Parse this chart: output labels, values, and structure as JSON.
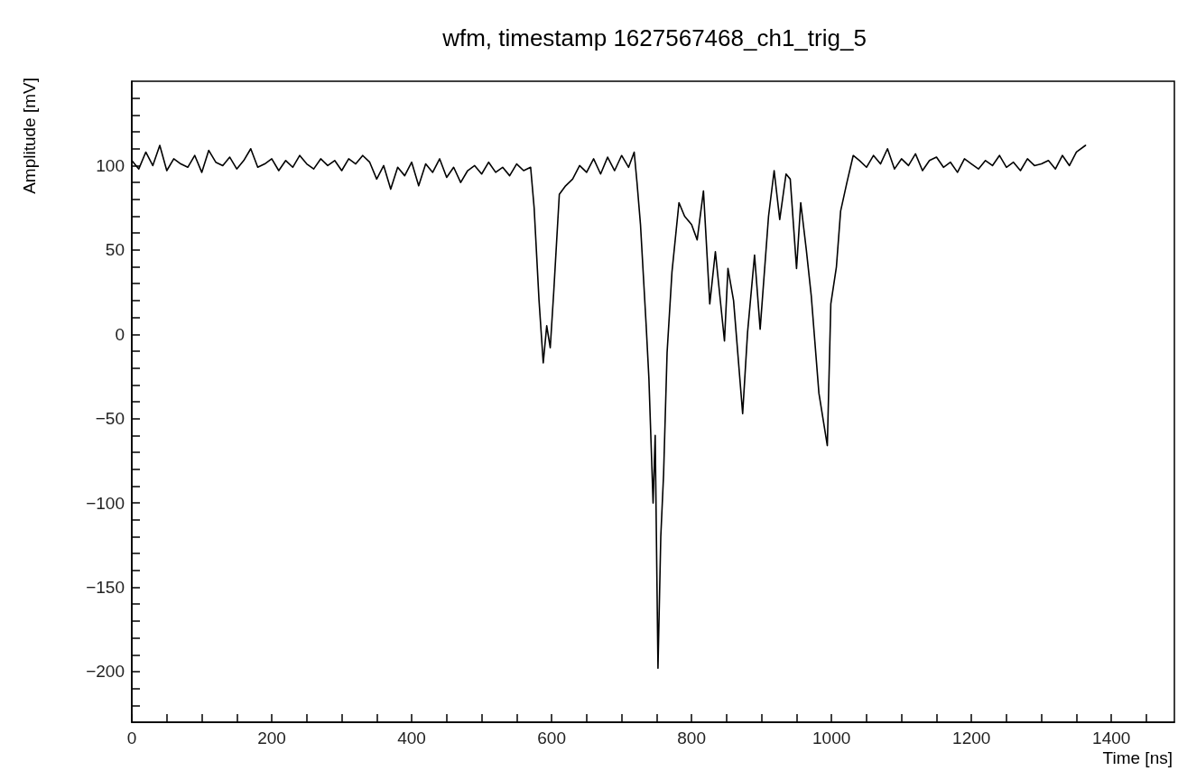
{
  "chart_data": {
    "type": "line",
    "title": "wfm, timestamp 1627567468_ch1_trig_5",
    "xlabel": "Time [ns]",
    "ylabel": "Amplitude [mV]",
    "xlim": [
      0,
      1490
    ],
    "ylim": [
      -230,
      150
    ],
    "xticks": [
      0,
      {
        "value": 50,
        "label": null
      },
      {
        "value": 100,
        "label": null
      },
      {
        "value": 150,
        "label": null
      },
      200,
      {
        "value": 250,
        "label": null
      },
      {
        "value": 300,
        "label": null
      },
      {
        "value": 350,
        "label": null
      },
      400,
      {
        "value": 450,
        "label": null
      },
      {
        "value": 500,
        "label": null
      },
      {
        "value": 550,
        "label": null
      },
      600,
      {
        "value": 650,
        "label": null
      },
      {
        "value": 700,
        "label": null
      },
      {
        "value": 750,
        "label": null
      },
      800,
      {
        "value": 850,
        "label": null
      },
      {
        "value": 900,
        "label": null
      },
      {
        "value": 950,
        "label": null
      },
      1000,
      {
        "value": 1050,
        "label": null
      },
      {
        "value": 1100,
        "label": null
      },
      {
        "value": 1150,
        "label": null
      },
      1200,
      {
        "value": 1250,
        "label": null
      },
      {
        "value": 1300,
        "label": null
      },
      {
        "value": 1350,
        "label": null
      },
      1400,
      {
        "value": 1450,
        "label": null
      }
    ],
    "yticks": [
      {
        "value": -220,
        "label": null
      },
      {
        "value": -210,
        "label": null
      },
      -200,
      {
        "value": -190,
        "label": null
      },
      {
        "value": -180,
        "label": null
      },
      {
        "value": -170,
        "label": null
      },
      {
        "value": -160,
        "label": null
      },
      -150,
      {
        "value": -140,
        "label": null
      },
      {
        "value": -130,
        "label": null
      },
      {
        "value": -120,
        "label": null
      },
      {
        "value": -110,
        "label": null
      },
      -100,
      {
        "value": -90,
        "label": null
      },
      {
        "value": -80,
        "label": null
      },
      {
        "value": -70,
        "label": null
      },
      {
        "value": -60,
        "label": null
      },
      -50,
      {
        "value": -40,
        "label": null
      },
      {
        "value": -30,
        "label": null
      },
      {
        "value": -20,
        "label": null
      },
      {
        "value": -10,
        "label": null
      },
      0,
      {
        "value": 10,
        "label": null
      },
      {
        "value": 20,
        "label": null
      },
      {
        "value": 30,
        "label": null
      },
      {
        "value": 40,
        "label": null
      },
      50,
      {
        "value": 60,
        "label": null
      },
      {
        "value": 70,
        "label": null
      },
      {
        "value": 80,
        "label": null
      },
      {
        "value": 90,
        "label": null
      },
      100,
      {
        "value": 110,
        "label": null
      },
      {
        "value": 120,
        "label": null
      },
      {
        "value": 130,
        "label": null
      },
      {
        "value": 140,
        "label": null
      }
    ],
    "grid": false,
    "marker": "none",
    "line_style": "solid",
    "series": [
      {
        "color": "#000000",
        "x": [
          0,
          10,
          20,
          30,
          40,
          50,
          60,
          70,
          80,
          90,
          100,
          110,
          120,
          130,
          140,
          150,
          160,
          170,
          180,
          190,
          200,
          210,
          220,
          230,
          240,
          250,
          260,
          270,
          280,
          290,
          300,
          310,
          320,
          330,
          340,
          350,
          360,
          370,
          380,
          390,
          400,
          410,
          420,
          430,
          440,
          450,
          460,
          470,
          480,
          490,
          500,
          510,
          520,
          530,
          540,
          550,
          560,
          570,
          575,
          582,
          588,
          593,
          598,
          603,
          611,
          620,
          630,
          640,
          650,
          660,
          670,
          680,
          690,
          700,
          710,
          718,
          722,
          727,
          735,
          739,
          745,
          748,
          752,
          756,
          760,
          765,
          772,
          782,
          790,
          800,
          808,
          817,
          826,
          834,
          847,
          852,
          860,
          873,
          880,
          890,
          898,
          910,
          918,
          926,
          935,
          941,
          950,
          956,
          964,
          971,
          982,
          994,
          999,
          1007,
          1013,
          1022,
          1031,
          1040,
          1050,
          1060,
          1070,
          1080,
          1090,
          1100,
          1110,
          1120,
          1130,
          1140,
          1150,
          1160,
          1170,
          1180,
          1190,
          1200,
          1210,
          1220,
          1230,
          1240,
          1250,
          1260,
          1270,
          1280,
          1290,
          1300,
          1310,
          1320,
          1330,
          1340,
          1350,
          1363
        ],
        "values": [
          103,
          98,
          108,
          100,
          112,
          97,
          104,
          101,
          99,
          106,
          96,
          109,
          102,
          100,
          105,
          98,
          103,
          110,
          99,
          101,
          104,
          97,
          103,
          99,
          106,
          101,
          98,
          104,
          100,
          103,
          97,
          104,
          101,
          106,
          102,
          92,
          100,
          86,
          99,
          94,
          102,
          88,
          101,
          96,
          104,
          93,
          99,
          90,
          97,
          100,
          95,
          102,
          96,
          99,
          94,
          101,
          97,
          99,
          75,
          20,
          -17,
          5,
          -8,
          25,
          83,
          88,
          92,
          100,
          96,
          104,
          95,
          105,
          97,
          106,
          99,
          108,
          90,
          65,
          6,
          -26,
          -100,
          -60,
          -198,
          -120,
          -83,
          -11,
          37,
          78,
          70,
          65,
          56,
          85,
          18,
          49,
          -4,
          39,
          20,
          -47,
          1,
          47,
          3,
          70,
          97,
          68,
          95,
          92,
          39,
          78,
          50,
          23,
          -35,
          -66,
          18,
          40,
          73,
          90,
          106,
          103,
          99,
          106,
          101,
          110,
          98,
          104,
          100,
          107,
          97,
          103,
          105,
          99,
          102,
          96,
          104,
          101,
          98,
          103,
          100,
          106,
          99,
          102,
          97,
          104,
          100,
          101,
          103,
          98,
          106,
          100,
          108,
          112
        ]
      }
    ]
  }
}
